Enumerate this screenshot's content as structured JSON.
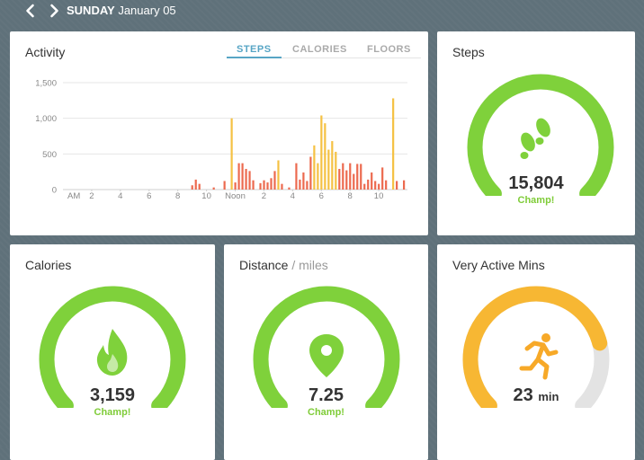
{
  "header": {
    "day": "SUNDAY",
    "date": "January 05"
  },
  "activity": {
    "title": "Activity",
    "tabs": [
      "STEPS",
      "CALORIES",
      "FLOORS"
    ],
    "active_tab": "STEPS"
  },
  "chart_data": {
    "type": "bar",
    "title": "Activity",
    "ylabel": "",
    "xlabel": "",
    "ylim": [
      0,
      1500
    ],
    "yticks": [
      0,
      500,
      1000,
      1500
    ],
    "ytick_labels": [
      "0",
      "500",
      "1,000",
      "1,500"
    ],
    "xtick_labels": [
      "AM",
      "2",
      "4",
      "6",
      "8",
      "10",
      "Noon",
      "2",
      "4",
      "6",
      "8",
      "10"
    ],
    "x_unit": "minutes-bucket index (15-minute intervals over 24 hours)",
    "x_range": [
      0,
      96
    ],
    "series_colors": {
      "active": "#f5c143",
      "light": "#ec6a4f"
    },
    "bars": [
      {
        "x": 36,
        "value": 60,
        "kind": "light"
      },
      {
        "x": 37,
        "value": 140,
        "kind": "light"
      },
      {
        "x": 38,
        "value": 80,
        "kind": "light"
      },
      {
        "x": 42,
        "value": 30,
        "kind": "light"
      },
      {
        "x": 45,
        "value": 120,
        "kind": "light"
      },
      {
        "x": 47,
        "value": 1000,
        "kind": "active"
      },
      {
        "x": 48,
        "value": 100,
        "kind": "light"
      },
      {
        "x": 49,
        "value": 370,
        "kind": "light"
      },
      {
        "x": 50,
        "value": 370,
        "kind": "light"
      },
      {
        "x": 51,
        "value": 290,
        "kind": "light"
      },
      {
        "x": 52,
        "value": 260,
        "kind": "light"
      },
      {
        "x": 53,
        "value": 130,
        "kind": "light"
      },
      {
        "x": 55,
        "value": 90,
        "kind": "light"
      },
      {
        "x": 56,
        "value": 130,
        "kind": "light"
      },
      {
        "x": 57,
        "value": 100,
        "kind": "light"
      },
      {
        "x": 58,
        "value": 160,
        "kind": "light"
      },
      {
        "x": 59,
        "value": 260,
        "kind": "light"
      },
      {
        "x": 60,
        "value": 410,
        "kind": "active"
      },
      {
        "x": 61,
        "value": 80,
        "kind": "light"
      },
      {
        "x": 63,
        "value": 30,
        "kind": "light"
      },
      {
        "x": 65,
        "value": 370,
        "kind": "light"
      },
      {
        "x": 66,
        "value": 140,
        "kind": "light"
      },
      {
        "x": 67,
        "value": 240,
        "kind": "light"
      },
      {
        "x": 68,
        "value": 120,
        "kind": "light"
      },
      {
        "x": 69,
        "value": 460,
        "kind": "light"
      },
      {
        "x": 70,
        "value": 620,
        "kind": "active"
      },
      {
        "x": 71,
        "value": 370,
        "kind": "active"
      },
      {
        "x": 72,
        "value": 1040,
        "kind": "active"
      },
      {
        "x": 73,
        "value": 930,
        "kind": "active"
      },
      {
        "x": 74,
        "value": 560,
        "kind": "active"
      },
      {
        "x": 75,
        "value": 680,
        "kind": "active"
      },
      {
        "x": 76,
        "value": 530,
        "kind": "active"
      },
      {
        "x": 77,
        "value": 290,
        "kind": "light"
      },
      {
        "x": 78,
        "value": 370,
        "kind": "light"
      },
      {
        "x": 79,
        "value": 270,
        "kind": "light"
      },
      {
        "x": 80,
        "value": 370,
        "kind": "light"
      },
      {
        "x": 81,
        "value": 220,
        "kind": "light"
      },
      {
        "x": 82,
        "value": 360,
        "kind": "light"
      },
      {
        "x": 83,
        "value": 360,
        "kind": "light"
      },
      {
        "x": 84,
        "value": 80,
        "kind": "light"
      },
      {
        "x": 85,
        "value": 140,
        "kind": "light"
      },
      {
        "x": 86,
        "value": 240,
        "kind": "light"
      },
      {
        "x": 87,
        "value": 120,
        "kind": "light"
      },
      {
        "x": 88,
        "value": 80,
        "kind": "light"
      },
      {
        "x": 89,
        "value": 310,
        "kind": "light"
      },
      {
        "x": 90,
        "value": 130,
        "kind": "light"
      },
      {
        "x": 92,
        "value": 1280,
        "kind": "active"
      },
      {
        "x": 93,
        "value": 120,
        "kind": "light"
      },
      {
        "x": 95,
        "value": 130,
        "kind": "light"
      }
    ]
  },
  "steps": {
    "title": "Steps",
    "value": "15,804",
    "status": "Champ!",
    "progress": 1.0,
    "color": "#7fd13b",
    "icon": "footprints-icon"
  },
  "calories": {
    "title": "Calories",
    "value": "3,159",
    "status": "Champ!",
    "progress": 1.0,
    "color": "#7fd13b",
    "icon": "flame-icon"
  },
  "distance": {
    "title": "Distance",
    "unit": "/ miles",
    "value": "7.25",
    "status": "Champ!",
    "progress": 1.0,
    "color": "#7fd13b",
    "icon": "location-pin-icon"
  },
  "active_mins": {
    "title": "Very Active Mins",
    "value": "23",
    "unit": "min",
    "progress": 0.78,
    "color": "#f7b733",
    "track_color": "#e3e3e3",
    "icon": "runner-icon"
  }
}
